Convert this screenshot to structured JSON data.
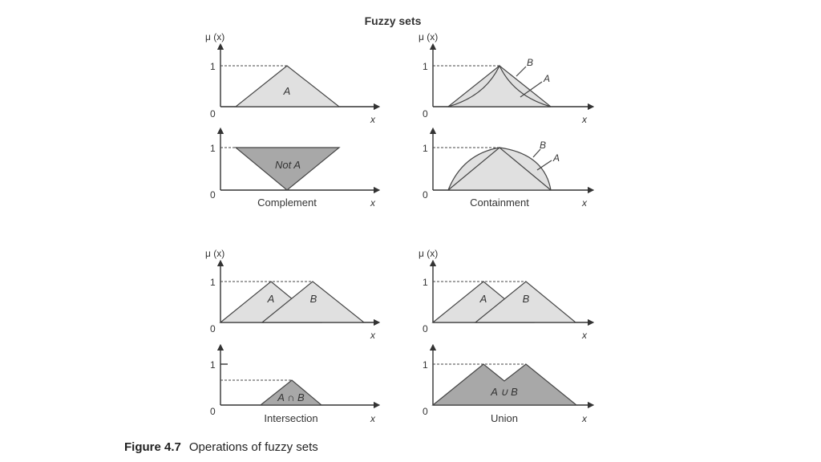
{
  "title": "Fuzzy sets",
  "caption": {
    "number": "Figure 4.7",
    "text": "Operations of fuzzy sets"
  },
  "axis": {
    "ylabel": "μ (x)",
    "xlabel": "x",
    "one": "1",
    "zero": "0"
  },
  "panels": {
    "original_a": {
      "set_label": "A"
    },
    "complement": {
      "set_label": "Not A",
      "name": "Complement"
    },
    "containment_top": {
      "label_b": "B",
      "label_a": "A"
    },
    "containment": {
      "label_b": "B",
      "label_a": "A",
      "name": "Containment"
    },
    "intersection_top": {
      "label_a": "A",
      "label_b": "B"
    },
    "intersection": {
      "set_label": "A ∩ B",
      "name": "Intersection"
    },
    "union_top": {
      "label_a": "A",
      "label_b": "B"
    },
    "union": {
      "set_label": "A ∪ B",
      "name": "Union"
    }
  },
  "colors": {
    "light_fill": "#e0e0e0",
    "dark_fill": "#a8a8a8",
    "stroke": "#444444"
  }
}
